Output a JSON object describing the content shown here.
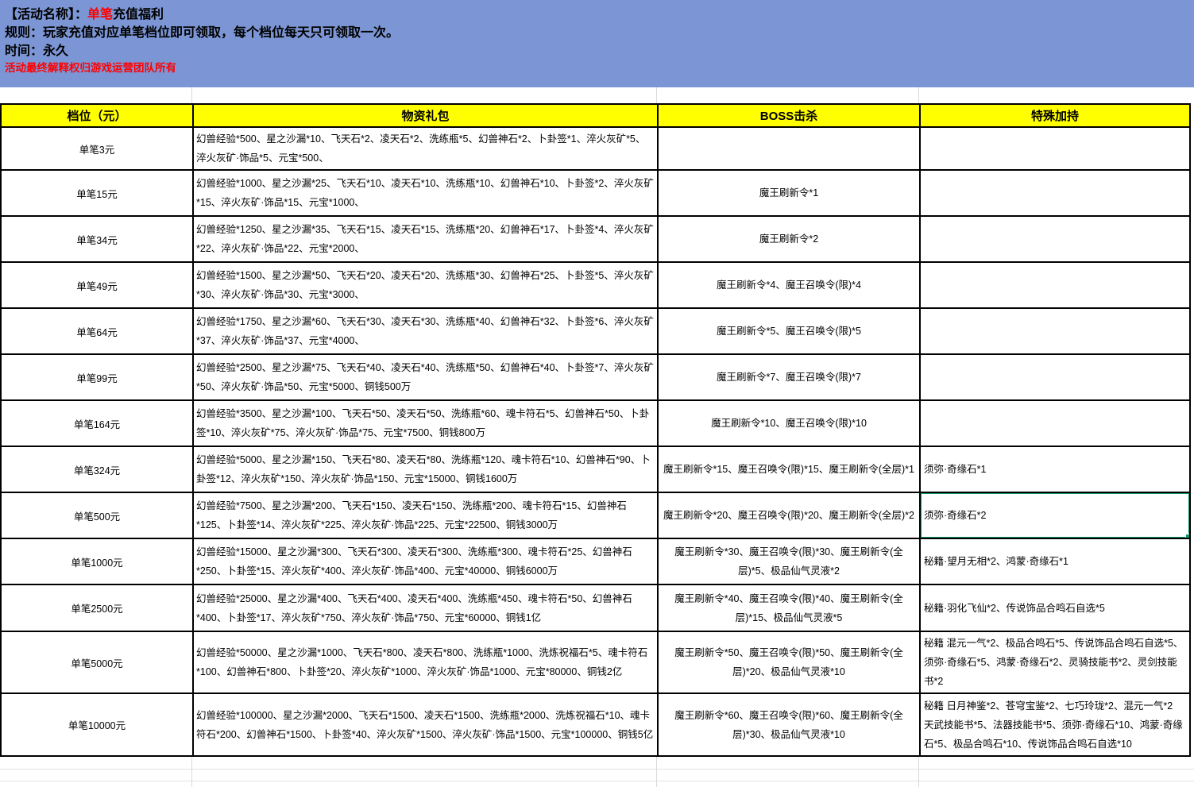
{
  "banner": {
    "bg_color": "#7c96d5",
    "title_prefix": "【活动名称】：",
    "title_highlight": "单笔",
    "title_suffix": "充值福利",
    "highlight_color": "#ff0000",
    "rule_line": "规则：玩家充值对应单笔档位即可领取，每个档位每天只可领取一次。",
    "time_line": "时间：永久",
    "disclaimer": "活动最终解释权归游戏运营团队所有"
  },
  "table": {
    "header_bg": "#ffff00",
    "columns": [
      "档位（元）",
      "物资礼包",
      "BOSS击杀",
      "特殊加持"
    ],
    "selection": {
      "row_index": 8,
      "column_key": "special",
      "color": "#12976a"
    },
    "rows": [
      {
        "tier": "单笔3元",
        "pack": "幻兽经验*500、星之沙漏*10、飞天石*2、凌天石*2、洗练瓶*5、幻兽神石*2、卜卦签*1、淬火灰矿*5、淬火灰矿·饰品*5、元宝*500、",
        "boss": "",
        "special": ""
      },
      {
        "tier": "单笔15元",
        "pack": "幻兽经验*1000、星之沙漏*25、飞天石*10、凌天石*10、洗练瓶*10、幻兽神石*10、卜卦签*2、淬火灰矿*15、淬火灰矿·饰品*15、元宝*1000、",
        "boss": "魔王刷新令*1",
        "special": ""
      },
      {
        "tier": "单笔34元",
        "pack": "幻兽经验*1250、星之沙漏*35、飞天石*15、凌天石*15、洗练瓶*20、幻兽神石*17、卜卦签*4、淬火灰矿*22、淬火灰矿·饰品*22、元宝*2000、",
        "boss": "魔王刷新令*2",
        "special": ""
      },
      {
        "tier": "单笔49元",
        "pack": "幻兽经验*1500、星之沙漏*50、飞天石*20、凌天石*20、洗练瓶*30、幻兽神石*25、卜卦签*5、淬火灰矿*30、淬火灰矿·饰品*30、元宝*3000、",
        "boss": "魔王刷新令*4、魔王召唤令(限)*4",
        "special": ""
      },
      {
        "tier": "单笔64元",
        "pack": "幻兽经验*1750、星之沙漏*60、飞天石*30、凌天石*30、洗练瓶*40、幻兽神石*32、卜卦签*6、淬火灰矿*37、淬火灰矿·饰品*37、元宝*4000、",
        "boss": "魔王刷新令*5、魔王召唤令(限)*5",
        "special": ""
      },
      {
        "tier": "单笔99元",
        "pack": "幻兽经验*2500、星之沙漏*75、飞天石*40、凌天石*40、洗练瓶*50、幻兽神石*40、卜卦签*7、淬火灰矿*50、淬火灰矿·饰品*50、元宝*5000、铜钱500万",
        "boss": "魔王刷新令*7、魔王召唤令(限)*7",
        "special": ""
      },
      {
        "tier": "单笔164元",
        "pack": "幻兽经验*3500、星之沙漏*100、飞天石*50、凌天石*50、洗练瓶*60、魂卡符石*5、幻兽神石*50、卜卦签*10、淬火灰矿*75、淬火灰矿·饰品*75、元宝*7500、铜钱800万",
        "boss": "魔王刷新令*10、魔王召唤令(限)*10",
        "special": ""
      },
      {
        "tier": "单笔324元",
        "pack": "幻兽经验*5000、星之沙漏*150、飞天石*80、凌天石*80、洗练瓶*120、魂卡符石*10、幻兽神石*90、卜卦签*12、淬火灰矿*150、淬火灰矿·饰品*150、元宝*15000、铜钱1600万",
        "boss": "魔王刷新令*15、魔王召唤令(限)*15、魔王刷新令(全层)*1",
        "special": "须弥·奇缘石*1"
      },
      {
        "tier": "单笔500元",
        "pack": "幻兽经验*7500、星之沙漏*200、飞天石*150、凌天石*150、洗练瓶*200、魂卡符石*15、幻兽神石*125、卜卦签*14、淬火灰矿*225、淬火灰矿·饰品*225、元宝*22500、铜钱3000万",
        "boss": "魔王刷新令*20、魔王召唤令(限)*20、魔王刷新令(全层)*2",
        "special": "须弥·奇缘石*2"
      },
      {
        "tier": "单笔1000元",
        "pack": "幻兽经验*15000、星之沙漏*300、飞天石*300、凌天石*300、洗练瓶*300、魂卡符石*25、幻兽神石*250、卜卦签*15、淬火灰矿*400、淬火灰矿·饰品*400、元宝*40000、铜钱6000万",
        "boss": "魔王刷新令*30、魔王召唤令(限)*30、魔王刷新令(全层)*5、极品仙气灵液*2",
        "special": "秘籍·望月无相*2、鸿蒙·奇缘石*1"
      },
      {
        "tier": "单笔2500元",
        "pack": "幻兽经验*25000、星之沙漏*400、飞天石*400、凌天石*400、洗练瓶*450、魂卡符石*50、幻兽神石*400、卜卦签*17、淬火灰矿*750、淬火灰矿·饰品*750、元宝*60000、铜钱1亿",
        "boss": "魔王刷新令*40、魔王召唤令(限)*40、魔王刷新令(全层)*15、极品仙气灵液*5",
        "special": "秘籍·羽化飞仙*2、传说饰品合鸣石自选*5"
      },
      {
        "tier": "单笔5000元",
        "pack": "幻兽经验*50000、星之沙漏*1000、飞天石*800、凌天石*800、洗练瓶*1000、洗炼祝福石*5、魂卡符石*100、幻兽神石*800、卜卦签*20、淬火灰矿*1000、淬火灰矿·饰品*1000、元宝*80000、铜钱2亿",
        "boss": "魔王刷新令*50、魔王召唤令(限)*50、魔王刷新令(全层)*20、极品仙气灵液*10",
        "special": "秘籍 混元一气*2、极品合鸣石*5、传说饰品合鸣石自选*5、须弥·奇缘石*5、鸿蒙·奇缘石*2、灵骑技能书*2、灵剑技能书*2"
      },
      {
        "tier": "单笔10000元",
        "pack": "幻兽经验*100000、星之沙漏*2000、飞天石*1500、凌天石*1500、洗练瓶*2000、洗炼祝福石*10、魂卡符石*200、幻兽神石*1500、卜卦签*40、淬火灰矿*1500、淬火灰矿·饰品*1500、元宝*100000、铜钱5亿",
        "boss": "魔王刷新令*60、魔王召唤令(限)*60、魔王刷新令(全层)*30、极品仙气灵液*10",
        "special": "秘籍 日月神鉴*2、苍穹宝鉴*2、七巧玲珑*2、混元一气*2\n天武技能书*5、法器技能书*5、须弥·奇缘石*10、鸿蒙·奇缘石*5、极品合鸣石*10、传说饰品合鸣石自选*10"
      }
    ]
  }
}
